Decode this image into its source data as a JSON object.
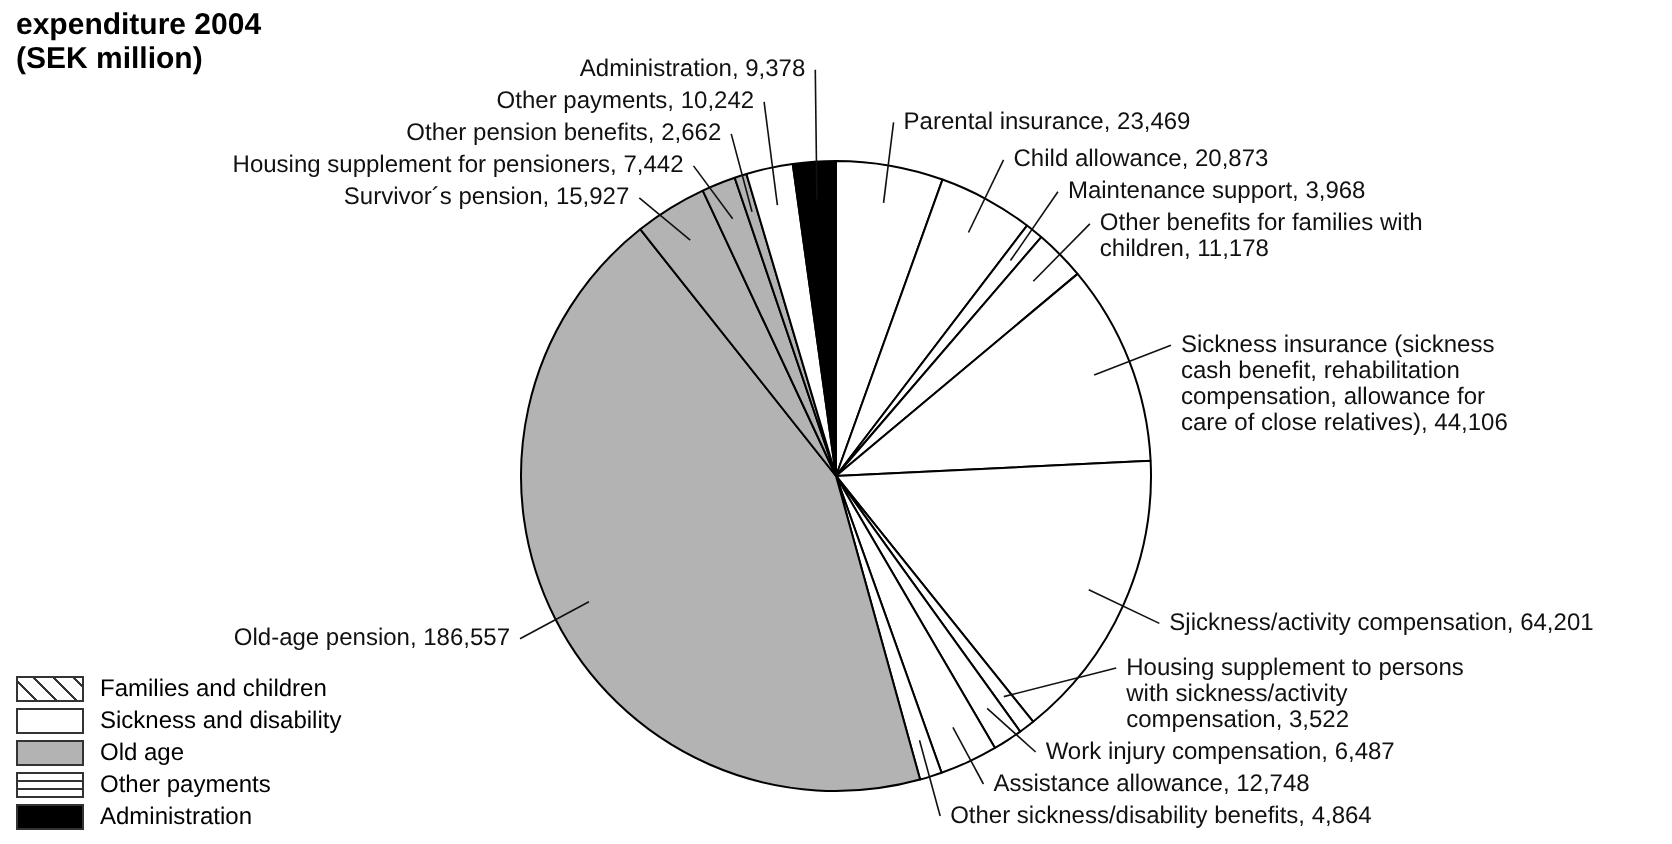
{
  "chart_data": {
    "type": "pie",
    "title": "expenditure 2004 (SEK million)",
    "categories": [
      "Parental insurance",
      "Child allowance",
      "Maintenance support",
      "Other benefits for families with children",
      "Sickness insurance (sickness cash benefit, rehabilitation compensation, allowance for care of close relatives)",
      "Sjickness/activity compensation",
      "Housing supplement to persons with sickness/activity compensation",
      "Work injury compensation",
      "Assistance allowance",
      "Other sickness/disability benefits",
      "Old-age pension",
      "Survivor´s pension",
      "Housing supplement for pensioners",
      "Other pension benefits",
      "Other payments",
      "Administration"
    ],
    "values": [
      23469,
      20873,
      3968,
      11178,
      44106,
      64201,
      3522,
      6487,
      12748,
      4864,
      186557,
      15927,
      7442,
      2662,
      10242,
      9378
    ],
    "colors": [
      "#ffffff",
      "#ffffff",
      "#ffffff",
      "#ffffff",
      "#ffffff",
      "#ffffff",
      "#ffffff",
      "#ffffff",
      "#ffffff",
      "#ffffff",
      "#b3b3b3",
      "#b3b3b3",
      "#b3b3b3",
      "#b3b3b3",
      "#ffffff",
      "#000000"
    ],
    "value_labels": [
      ", 23,469",
      ", 20,873",
      ", 3,968",
      ", 11,178",
      ", 44,106",
      ", 64,201",
      ", 3,522",
      ", 6,487",
      ", 12,748",
      ", 4,864",
      ", 186,557",
      ", 15,927",
      ", 7,442",
      ", 2,662",
      ", 10,242",
      ", 9,378"
    ],
    "annotations": [
      "Families and children",
      "Sickness and disability",
      "Old age",
      "Other payments",
      "Administration"
    ]
  }
}
